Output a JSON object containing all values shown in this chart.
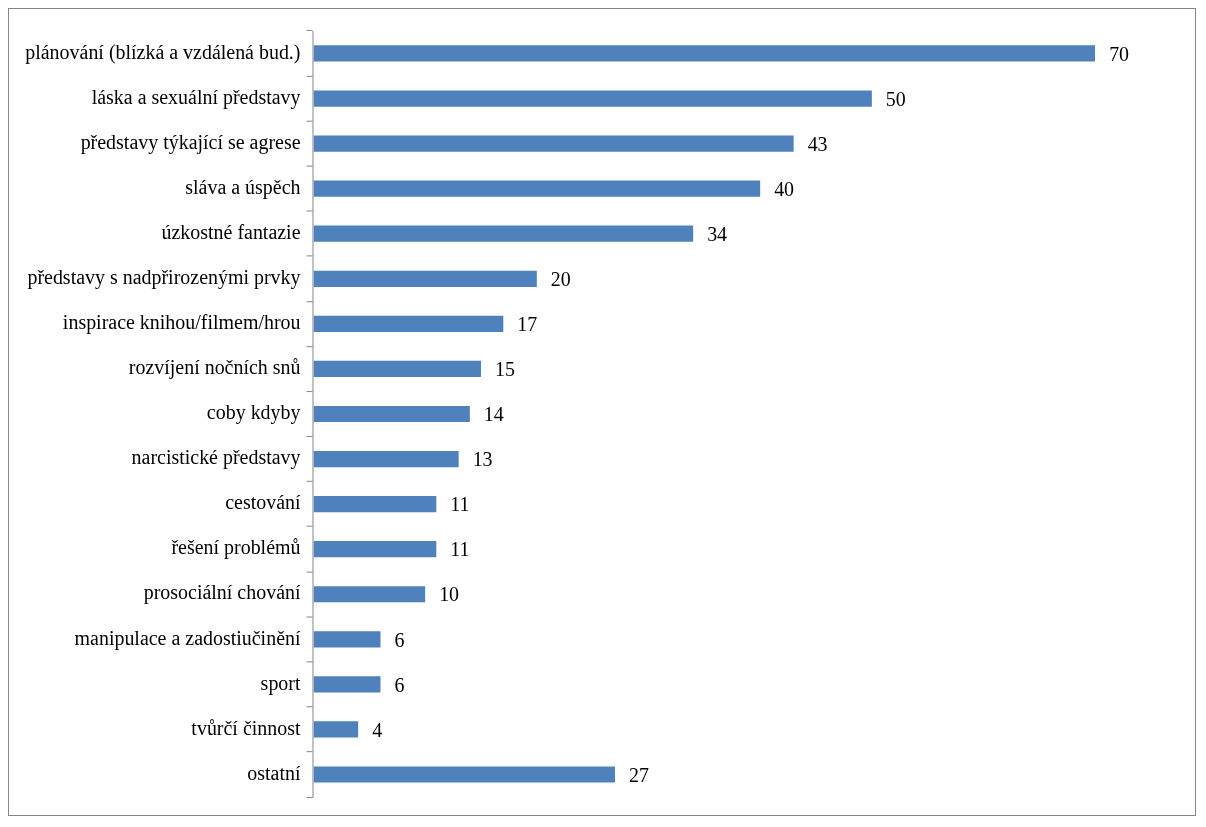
{
  "chart_data": {
    "type": "bar",
    "orientation": "horizontal",
    "categories": [
      "plánování (blízká a vzdálená bud.)",
      "láska a sexuální představy",
      "představy týkající se agrese",
      "sláva a úspěch",
      "úzkostné fantazie",
      "představy s nadpřirozenými prvky",
      "inspirace knihou/filmem/hrou",
      "rozvíjení nočních snů",
      "coby kdyby",
      "narcistické představy",
      "cestování",
      "řešení problémů",
      "prosociální chování",
      "manipulace a zadostiučinění",
      "sport",
      "tvůrčí činnost",
      "ostatní"
    ],
    "values": [
      70,
      50,
      43,
      40,
      34,
      20,
      17,
      15,
      14,
      13,
      11,
      11,
      10,
      6,
      6,
      4,
      27
    ],
    "color": "#4f81bd",
    "data_labels": true,
    "grid": false,
    "legend": false
  }
}
